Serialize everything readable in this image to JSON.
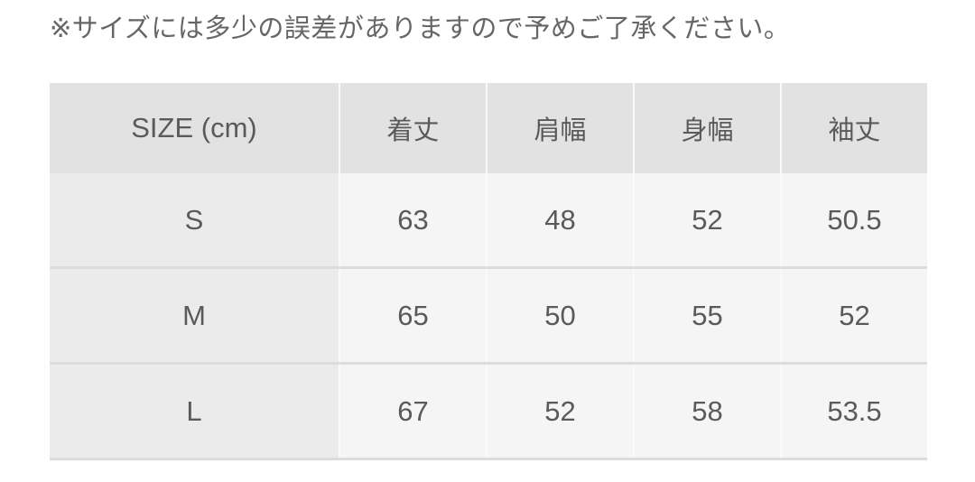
{
  "note": "※サイズには多少の誤差がありますので予めご了承ください。",
  "table": {
    "headers": [
      "SIZE (cm)",
      "着丈",
      "肩幅",
      "身幅",
      "袖丈"
    ],
    "rows": [
      [
        "S",
        "63",
        "48",
        "52",
        "50.5"
      ],
      [
        "M",
        "65",
        "50",
        "55",
        "52"
      ],
      [
        "L",
        "67",
        "52",
        "58",
        "53.5"
      ]
    ]
  }
}
